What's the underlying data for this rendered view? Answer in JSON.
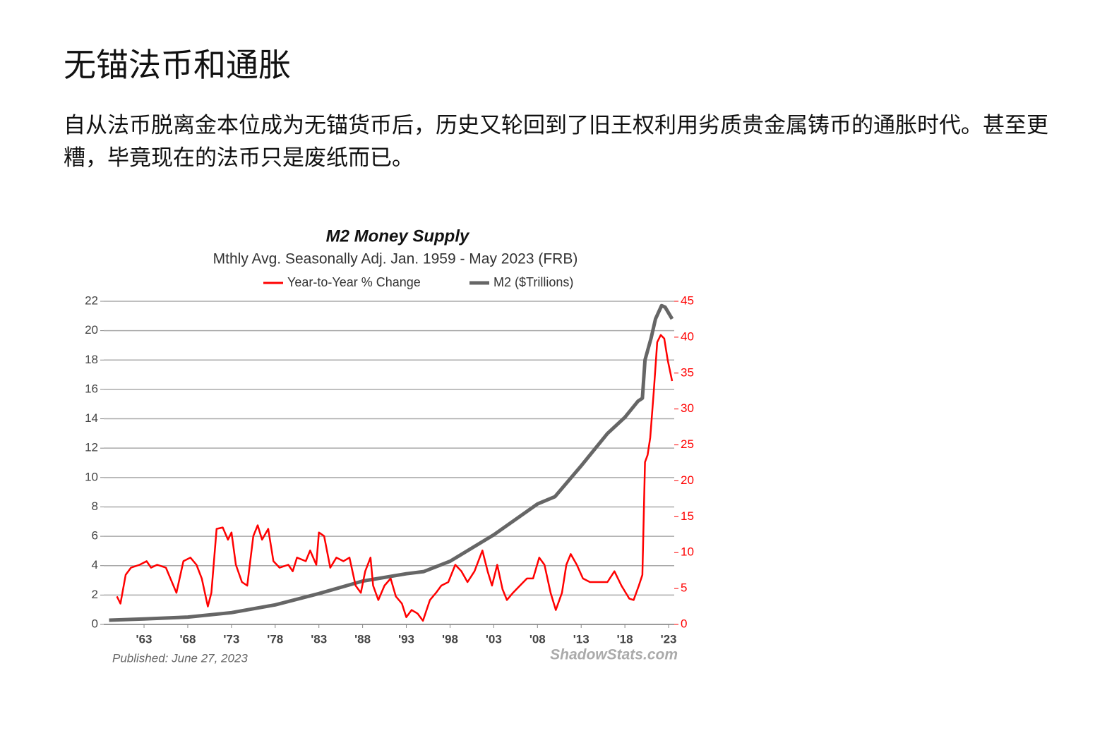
{
  "header": {
    "title": "无锚法币和通胀"
  },
  "body": {
    "paragraph": "自从法币脱离金本位成为无锚货币后，历史又轮回到了旧王权利用劣质贵金属铸币的通胀时代。甚至更糟，毕竟现在的法币只是废纸而已。"
  },
  "chart_data": {
    "type": "line",
    "title": "M2 Money Supply",
    "subtitle": "Mthly Avg. Seasonally Adj. Jan. 1959 - May 2023  (FRB)",
    "annotations": [
      "Published: June 27, 2023",
      "ShadowStats.com"
    ],
    "xlim": [
      1959,
      2023.4
    ],
    "xticks": [
      {
        "value": 1963,
        "label": "'63"
      },
      {
        "value": 1968,
        "label": "'68"
      },
      {
        "value": 1973,
        "label": "'73"
      },
      {
        "value": 1978,
        "label": "'78"
      },
      {
        "value": 1983,
        "label": "'83"
      },
      {
        "value": 1988,
        "label": "'88"
      },
      {
        "value": 1993,
        "label": "'93"
      },
      {
        "value": 1998,
        "label": "'98"
      },
      {
        "value": 2003,
        "label": "'03"
      },
      {
        "value": 2008,
        "label": "'08"
      },
      {
        "value": 2013,
        "label": "'13"
      },
      {
        "value": 2018,
        "label": "'18"
      },
      {
        "value": 2023,
        "label": "'23"
      }
    ],
    "ylim": [
      0,
      22
    ],
    "yticks": [
      0,
      2,
      4,
      6,
      8,
      10,
      12,
      14,
      16,
      18,
      20,
      22
    ],
    "y2lim": [
      0,
      45
    ],
    "y2ticks": [
      0,
      5,
      10,
      15,
      20,
      25,
      30,
      35,
      40,
      45
    ],
    "grid": true,
    "series": [
      {
        "name": "Year-to-Year % Change",
        "color": "#ff0000",
        "axis": "y2",
        "x": [
          1959.9,
          1960.3,
          1960.9,
          1961.5,
          1962.5,
          1963.3,
          1963.8,
          1964.5,
          1965.5,
          1966.7,
          1967.5,
          1968.3,
          1969.0,
          1969.6,
          1970.3,
          1970.7,
          1971.3,
          1972.0,
          1972.6,
          1973.0,
          1973.5,
          1974.2,
          1974.8,
          1975.5,
          1976.0,
          1976.5,
          1977.2,
          1977.8,
          1978.5,
          1979.5,
          1980.0,
          1980.5,
          1981.5,
          1982.0,
          1982.7,
          1983.0,
          1983.6,
          1984.3,
          1985.0,
          1985.8,
          1986.5,
          1987.2,
          1987.8,
          1988.3,
          1988.9,
          1989.2,
          1989.8,
          1990.5,
          1991.2,
          1991.8,
          1992.5,
          1993.0,
          1993.6,
          1994.3,
          1994.9,
          1995.7,
          1996.4,
          1997.0,
          1997.8,
          1998.6,
          1999.3,
          2000.0,
          2000.8,
          2001.7,
          2002.3,
          2002.8,
          2003.4,
          2004.0,
          2004.5,
          2005.2,
          2006.0,
          2006.8,
          2007.5,
          2008.2,
          2008.8,
          2009.5,
          2010.1,
          2010.8,
          2011.3,
          2011.8,
          2012.5,
          2013.2,
          2014.0,
          2015.0,
          2016.0,
          2016.8,
          2017.6,
          2018.5,
          2019.0,
          2019.6,
          2020.0,
          2020.3,
          2020.6,
          2020.9,
          2021.3,
          2021.7,
          2022.1,
          2022.5,
          2022.9,
          2023.4
        ],
        "values": [
          3.9,
          2.9,
          6.9,
          7.9,
          8.3,
          8.8,
          7.9,
          8.3,
          7.9,
          4.4,
          8.8,
          9.3,
          8.3,
          6.4,
          2.5,
          4.4,
          13.3,
          13.5,
          11.8,
          12.8,
          8.3,
          5.9,
          5.4,
          12.3,
          13.8,
          11.8,
          13.3,
          8.8,
          7.9,
          8.3,
          7.4,
          9.3,
          8.8,
          10.3,
          8.3,
          12.8,
          12.3,
          7.9,
          9.3,
          8.8,
          9.3,
          5.4,
          4.4,
          7.4,
          9.3,
          5.4,
          3.4,
          5.4,
          6.4,
          3.9,
          2.9,
          1.0,
          2.0,
          1.5,
          0.5,
          3.4,
          4.4,
          5.4,
          5.9,
          8.3,
          7.4,
          5.9,
          7.4,
          10.3,
          7.4,
          5.4,
          8.3,
          4.9,
          3.4,
          4.4,
          5.4,
          6.4,
          6.4,
          9.3,
          8.3,
          4.4,
          2.0,
          4.4,
          8.3,
          9.8,
          8.3,
          6.4,
          5.9,
          5.9,
          5.9,
          7.4,
          5.4,
          3.6,
          3.4,
          5.4,
          6.9,
          22.6,
          23.6,
          26.0,
          32.4,
          39.3,
          40.3,
          39.8,
          36.8,
          33.9
        ]
      },
      {
        "name": "M2 ($Trillions)",
        "color": "#666666",
        "x": [
          1959.0,
          1963.0,
          1968.0,
          1973.0,
          1978.0,
          1983.0,
          1988.0,
          1993.0,
          1995.0,
          1998.0,
          2003.0,
          2008.0,
          2010.0,
          2013.0,
          2016.0,
          2018.0,
          2019.5,
          2020.0,
          2020.3,
          2021.0,
          2021.5,
          2022.2,
          2022.6,
          2023.4
        ],
        "values": [
          0.29,
          0.37,
          0.5,
          0.8,
          1.33,
          2.1,
          2.95,
          3.45,
          3.6,
          4.3,
          6.1,
          8.2,
          8.7,
          10.8,
          13.0,
          14.1,
          15.2,
          15.4,
          18.0,
          19.5,
          20.8,
          21.7,
          21.6,
          20.8
        ]
      }
    ]
  }
}
